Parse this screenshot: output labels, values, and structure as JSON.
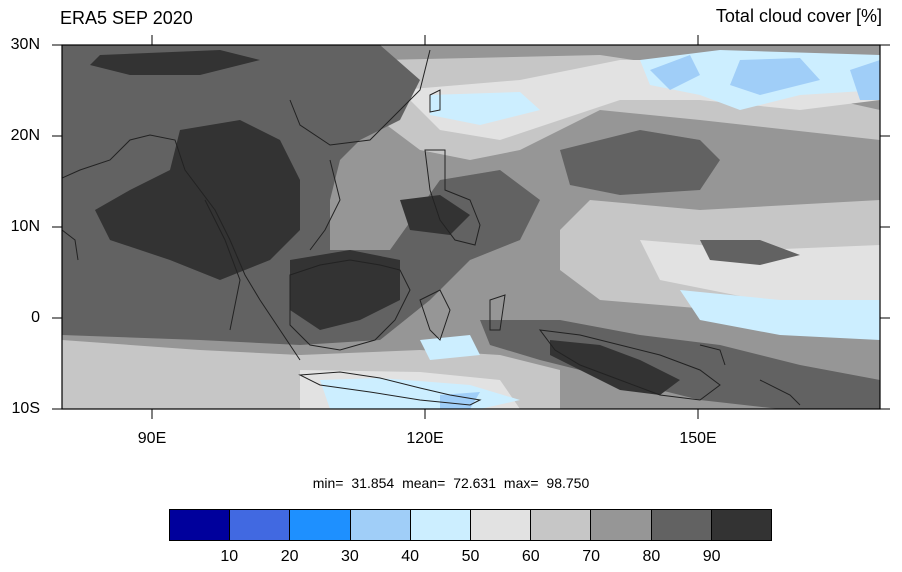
{
  "title": "ERA5 SEP 2020",
  "variable": "Total cloud cover [%]",
  "lat_labels": [
    "30N",
    "20N",
    "10N",
    "0",
    "10S"
  ],
  "lon_labels": [
    "90E",
    "120E",
    "150E"
  ],
  "stats": {
    "min_label": "min=",
    "min": "31.854",
    "mean_label": "mean=",
    "mean": "72.631",
    "max_label": "max=",
    "max": "98.750"
  },
  "colorbar": {
    "colors": [
      "#00009c",
      "#4169e1",
      "#1e90ff",
      "#a0cef8",
      "#cceeff",
      "#e2e2e2",
      "#c6c6c6",
      "#969696",
      "#626262",
      "#333333"
    ],
    "labels": [
      "10",
      "20",
      "30",
      "40",
      "50",
      "60",
      "70",
      "80",
      "90"
    ]
  }
}
